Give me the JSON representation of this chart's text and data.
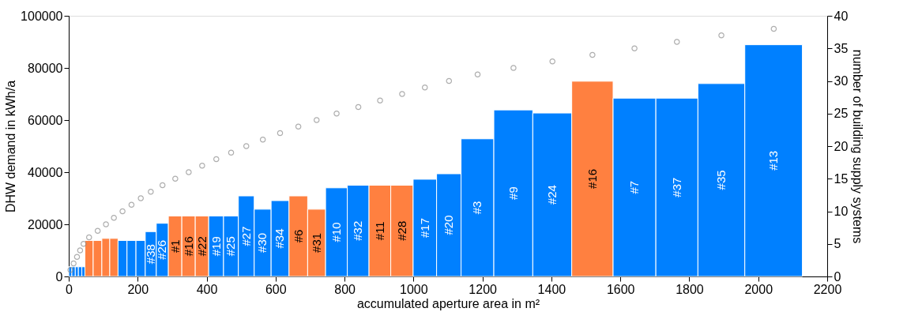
{
  "chart_data": {
    "type": "histogram",
    "xlabel": "accumulated aperture area in m²",
    "ylabel": "DHW demand in kWh/a",
    "y2label": "number of building supply systems",
    "bins": [
      0,
      9,
      19,
      28,
      38,
      47,
      71,
      96,
      119,
      143,
      169,
      195,
      222,
      254,
      289,
      328,
      367,
      406,
      449,
      492,
      538,
      587,
      639,
      693,
      745,
      808,
      871,
      934,
      999,
      1067,
      1138,
      1233,
      1346,
      1459,
      1579,
      1703,
      1825,
      1961,
      2128
    ],
    "values": [
      3700,
      3700,
      3700,
      3700,
      3700,
      13800,
      13800,
      14600,
      14600,
      13800,
      13800,
      13800,
      17200,
      20400,
      23200,
      23200,
      23200,
      23200,
      23200,
      30900,
      25800,
      29100,
      30900,
      25800,
      34000,
      35000,
      35000,
      35000,
      37300,
      39400,
      52800,
      63900,
      62700,
      74900,
      68400,
      68400,
      74000,
      88900
    ],
    "colors": [
      "#0080ff",
      "#0080ff",
      "#0080ff",
      "#0080ff",
      "#0080ff",
      "#ff8040",
      "#ff8040",
      "#ff8040",
      "#ff8040",
      "#0080ff",
      "#0080ff",
      "#0080ff",
      "#0080ff",
      "#0080ff",
      "#ff8040",
      "#ff8040",
      "#ff8040",
      "#0080ff",
      "#0080ff",
      "#0080ff",
      "#0080ff",
      "#0080ff",
      "#ff8040",
      "#ff8040",
      "#0080ff",
      "#0080ff",
      "#ff8040",
      "#ff8040",
      "#0080ff",
      "#0080ff",
      "#0080ff",
      "#0080ff",
      "#0080ff",
      "#ff8040",
      "#0080ff",
      "#0080ff",
      "#0080ff",
      "#0080ff"
    ],
    "series": [
      {
        "type": "scatter",
        "axis": "y2",
        "color": "#8c8c8c",
        "x": [
          5,
          14,
          24,
          33,
          43,
          59,
          84,
          108,
          131,
          156,
          182,
          209,
          238,
          272,
          309,
          348,
          387,
          428,
          471,
          515,
          563,
          613,
          666,
          719,
          777,
          840,
          903,
          967,
          1033,
          1103,
          1186,
          1290,
          1403,
          1519,
          1641,
          1764,
          1893,
          2045
        ],
        "values": [
          1,
          2,
          3,
          4,
          5,
          6,
          7,
          8,
          9,
          10,
          11,
          12,
          13,
          14,
          15,
          16,
          17,
          18,
          19,
          20,
          21,
          22,
          23,
          24,
          25,
          26,
          27,
          28,
          29,
          30,
          31,
          32,
          33,
          34,
          35,
          36,
          37,
          38
        ]
      }
    ],
    "marker": "circle",
    "xlim": [
      0,
      2200
    ],
    "xticks": [
      0,
      200,
      400,
      600,
      800,
      1000,
      1200,
      1400,
      1600,
      1800,
      2000,
      2200
    ],
    "ylim": [
      0,
      100000
    ],
    "yticks": [
      0,
      20000,
      40000,
      60000,
      80000,
      100000
    ],
    "y2lim": [
      0,
      40
    ],
    "y2ticks": [
      0,
      5,
      10,
      15,
      20,
      25,
      30,
      35,
      40
    ],
    "grid": false,
    "annotations": [
      "#38",
      "#26",
      "#1",
      "#16",
      "#22",
      "#19",
      "#25",
      "#27",
      "#30",
      "#34",
      "#6",
      "#31",
      "#10",
      "#32",
      "#11",
      "#28",
      "#17",
      "#20",
      "#3",
      "#9",
      "#24",
      "#16",
      "#7",
      "#37",
      "#35",
      "#13"
    ]
  }
}
